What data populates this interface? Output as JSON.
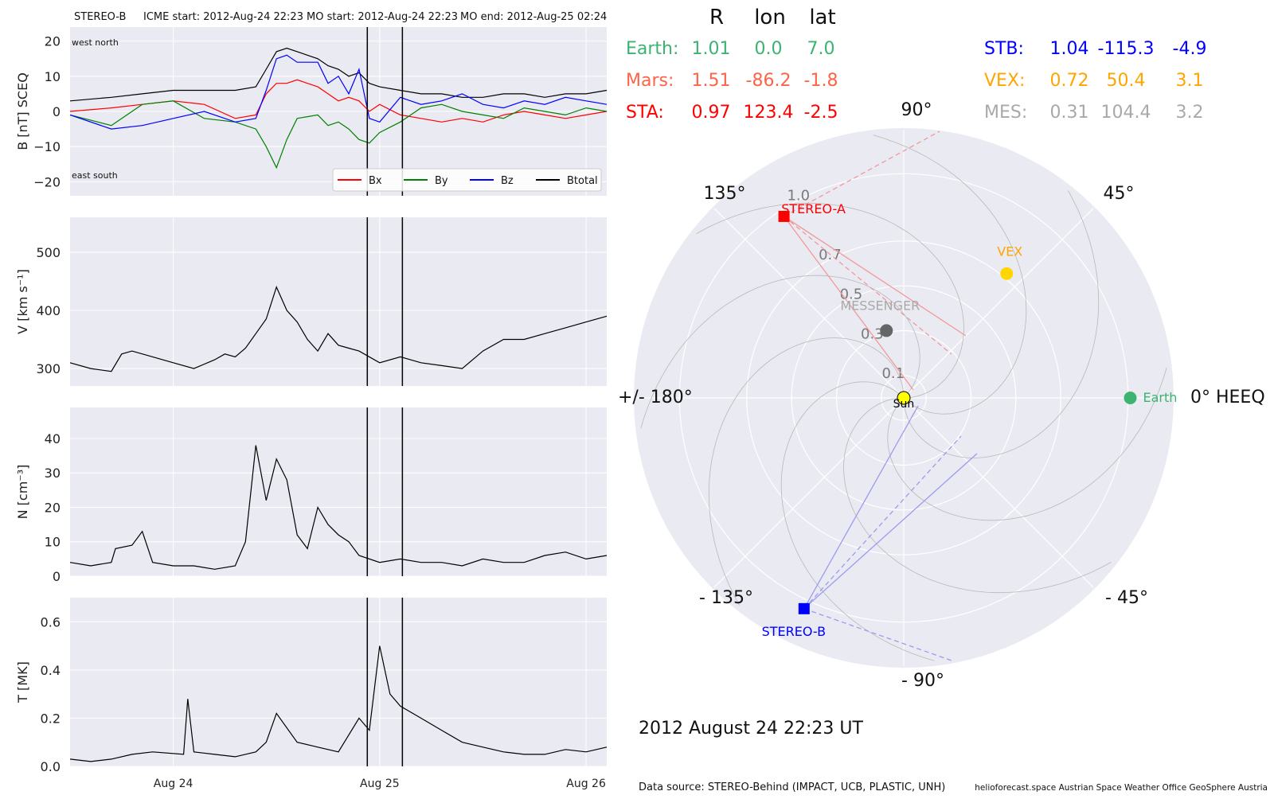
{
  "header": {
    "spacecraft": "STEREO-B",
    "icme_start": "ICME start: 2012-Aug-24 22:23",
    "mo_start": "MO start: 2012-Aug-24 22:23",
    "mo_end": "MO end: 2012-Aug-25 02:24"
  },
  "chart_data": [
    {
      "type": "line",
      "panel": "magnetic field",
      "ylabel": "B [nT] SCEQ",
      "ylim": [
        -24,
        24
      ],
      "yticks": [
        "20",
        "10",
        "0",
        "−10",
        "−20"
      ],
      "ytick_values": [
        20,
        10,
        0,
        -10,
        -20
      ],
      "corner_labels": {
        "top": "west    north",
        "bottom": "east    south"
      },
      "legend": [
        {
          "name": "Bx",
          "color": "#ff0000"
        },
        {
          "name": "By",
          "color": "#008000"
        },
        {
          "name": "Bz",
          "color": "#0000ff"
        },
        {
          "name": "Btotal",
          "color": "#000000"
        }
      ],
      "series": [
        {
          "name": "Btotal",
          "color": "#000000",
          "x": [
            0,
            0.2,
            0.35,
            0.5,
            0.65,
            0.8,
            0.9,
            0.95,
            1.0,
            1.05,
            1.1,
            1.2,
            1.25,
            1.3,
            1.35,
            1.4,
            1.45,
            1.5,
            1.6,
            1.7,
            1.8,
            1.9,
            2.0,
            2.1,
            2.2,
            2.3,
            2.4,
            2.5,
            2.6
          ],
          "y": [
            3,
            4,
            5,
            6,
            6,
            6,
            7,
            12,
            17,
            18,
            17,
            15,
            13,
            12,
            10,
            11,
            8,
            7,
            6,
            5,
            5,
            4,
            4,
            5,
            5,
            4,
            5,
            5,
            6
          ]
        },
        {
          "name": "Bx",
          "color": "#ff0000",
          "x": [
            0,
            0.2,
            0.35,
            0.5,
            0.65,
            0.8,
            0.9,
            0.95,
            1.0,
            1.05,
            1.1,
            1.2,
            1.25,
            1.3,
            1.35,
            1.4,
            1.45,
            1.5,
            1.6,
            1.7,
            1.8,
            1.9,
            2.0,
            2.1,
            2.2,
            2.3,
            2.4,
            2.5,
            2.6
          ],
          "y": [
            0,
            1,
            2,
            3,
            2,
            -2,
            -1,
            5,
            8,
            8,
            9,
            7,
            5,
            3,
            4,
            3,
            0,
            2,
            -1,
            -2,
            -3,
            -2,
            -3,
            -1,
            0,
            -1,
            -2,
            -1,
            0
          ]
        },
        {
          "name": "By",
          "color": "#008000",
          "x": [
            0,
            0.2,
            0.35,
            0.5,
            0.65,
            0.8,
            0.9,
            0.95,
            1.0,
            1.05,
            1.1,
            1.2,
            1.25,
            1.3,
            1.35,
            1.4,
            1.45,
            1.5,
            1.6,
            1.7,
            1.8,
            1.9,
            2.0,
            2.1,
            2.2,
            2.3,
            2.4,
            2.5,
            2.6
          ],
          "y": [
            -1,
            -4,
            2,
            3,
            -2,
            -3,
            -5,
            -10,
            -16,
            -8,
            -2,
            -1,
            -4,
            -3,
            -5,
            -8,
            -9,
            -6,
            -3,
            1,
            2,
            0,
            -1,
            -2,
            1,
            0,
            -1,
            1,
            0
          ]
        },
        {
          "name": "Bz",
          "color": "#0000ff",
          "x": [
            0,
            0.2,
            0.35,
            0.5,
            0.65,
            0.8,
            0.9,
            0.95,
            1.0,
            1.05,
            1.1,
            1.2,
            1.25,
            1.3,
            1.35,
            1.4,
            1.45,
            1.5,
            1.6,
            1.7,
            1.8,
            1.9,
            2.0,
            2.1,
            2.2,
            2.3,
            2.4,
            2.5,
            2.6
          ],
          "y": [
            -1,
            -5,
            -4,
            -2,
            0,
            -3,
            -2,
            6,
            15,
            16,
            14,
            14,
            8,
            10,
            5,
            12,
            -2,
            -3,
            4,
            2,
            3,
            5,
            2,
            1,
            3,
            2,
            4,
            3,
            2
          ]
        }
      ]
    },
    {
      "type": "line",
      "panel": "speed",
      "ylabel": "V [km s⁻¹]",
      "ylim": [
        270,
        560
      ],
      "yticks": [
        "500",
        "400",
        "300"
      ],
      "ytick_values": [
        500,
        400,
        300
      ],
      "series": [
        {
          "name": "",
          "color": "#000000",
          "x": [
            0,
            0.1,
            0.2,
            0.25,
            0.3,
            0.4,
            0.5,
            0.6,
            0.7,
            0.75,
            0.8,
            0.85,
            0.9,
            0.95,
            1.0,
            1.05,
            1.1,
            1.15,
            1.2,
            1.25,
            1.3,
            1.35,
            1.4,
            1.5,
            1.6,
            1.7,
            1.8,
            1.9,
            2.0,
            2.1,
            2.2,
            2.3,
            2.4,
            2.5,
            2.6
          ],
          "y": [
            310,
            300,
            295,
            325,
            330,
            320,
            310,
            300,
            315,
            325,
            320,
            335,
            360,
            385,
            440,
            400,
            380,
            350,
            330,
            360,
            340,
            335,
            330,
            310,
            320,
            310,
            305,
            300,
            330,
            350,
            350,
            360,
            370,
            380,
            390
          ]
        }
      ]
    },
    {
      "type": "line",
      "panel": "density",
      "ylabel": "N [cm⁻³]",
      "ylim": [
        0,
        49
      ],
      "yticks": [
        "40",
        "30",
        "20",
        "10",
        "0"
      ],
      "ytick_values": [
        40,
        30,
        20,
        10,
        0
      ],
      "series": [
        {
          "name": "",
          "color": "#000000",
          "x": [
            0,
            0.1,
            0.2,
            0.22,
            0.3,
            0.35,
            0.4,
            0.5,
            0.6,
            0.7,
            0.8,
            0.85,
            0.9,
            0.95,
            1.0,
            1.05,
            1.1,
            1.15,
            1.2,
            1.25,
            1.3,
            1.35,
            1.4,
            1.5,
            1.6,
            1.7,
            1.8,
            1.9,
            2.0,
            2.1,
            2.2,
            2.3,
            2.4,
            2.5,
            2.6
          ],
          "y": [
            4,
            3,
            4,
            8,
            9,
            13,
            4,
            3,
            3,
            2,
            3,
            10,
            38,
            22,
            34,
            28,
            12,
            8,
            20,
            15,
            12,
            10,
            6,
            4,
            5,
            4,
            4,
            3,
            5,
            4,
            4,
            6,
            7,
            5,
            6
          ]
        }
      ]
    },
    {
      "type": "line",
      "panel": "temperature",
      "ylabel": "T [MK]",
      "ylim": [
        0,
        0.7
      ],
      "yticks": [
        "0.6",
        "0.4",
        "0.2",
        "0.0"
      ],
      "ytick_values": [
        0.6,
        0.4,
        0.2,
        0.0
      ],
      "xticks": [
        "Aug 24",
        "Aug 25",
        "Aug 26"
      ],
      "xtick_values": [
        0.5,
        1.5,
        2.5
      ],
      "series": [
        {
          "name": "",
          "color": "#000000",
          "x": [
            0,
            0.1,
            0.2,
            0.3,
            0.4,
            0.55,
            0.57,
            0.6,
            0.7,
            0.8,
            0.9,
            0.95,
            1.0,
            1.1,
            1.2,
            1.3,
            1.4,
            1.45,
            1.5,
            1.55,
            1.6,
            1.7,
            1.8,
            1.9,
            2.0,
            2.1,
            2.2,
            2.3,
            2.4,
            2.5,
            2.6
          ],
          "y": [
            0.03,
            0.02,
            0.03,
            0.05,
            0.06,
            0.05,
            0.28,
            0.06,
            0.05,
            0.04,
            0.06,
            0.1,
            0.22,
            0.1,
            0.08,
            0.06,
            0.2,
            0.15,
            0.5,
            0.3,
            0.25,
            0.2,
            0.15,
            0.1,
            0.08,
            0.06,
            0.05,
            0.05,
            0.07,
            0.06,
            0.08
          ]
        }
      ]
    },
    {
      "type": "scatter",
      "panel": "polar position plot",
      "angular_ticks": [
        "90°",
        "45°",
        "0° HEEQ",
        "- 45°",
        "- 90°",
        "- 135°",
        "+/- 180°",
        "135°"
      ],
      "radial_ticks": [
        "0.1",
        "0.3",
        "0.5",
        "0.7",
        "1.0"
      ],
      "radial_tick_values": [
        0.1,
        0.3,
        0.5,
        0.7,
        1.0
      ],
      "r_max": 1.2,
      "points": [
        {
          "name": "Sun",
          "r": 0.0,
          "lon": 0.0,
          "color": "#ffff00"
        },
        {
          "name": "Earth",
          "r": 1.01,
          "lon": 0.0,
          "color": "#3cb371"
        },
        {
          "name": "VEX",
          "r": 0.72,
          "lon": 50.4,
          "color": "#ffd700"
        },
        {
          "name": "MESSENGER",
          "r": 0.31,
          "lon": 104.4,
          "color": "#666666"
        },
        {
          "name": "STEREO-A",
          "r": 0.97,
          "lon": 123.4,
          "color": "#ff0000"
        },
        {
          "name": "STEREO-B",
          "r": 1.04,
          "lon": -115.3,
          "color": "#0000ff"
        }
      ]
    }
  ],
  "shading": {
    "event_lines_x": [
      1.44,
      1.61
    ]
  },
  "position_table": {
    "headers": [
      "R",
      "lon",
      "lat"
    ],
    "left": [
      {
        "name": "Earth:",
        "r": "1.01",
        "lon": "0.0",
        "lat": "7.0",
        "color": "#3cb371"
      },
      {
        "name": "Mars:",
        "r": "1.51",
        "lon": "-86.2",
        "lat": "-1.8",
        "color": "#ff6347"
      },
      {
        "name": "STA:",
        "r": "0.97",
        "lon": "123.4",
        "lat": "-2.5",
        "color": "#ff0000"
      }
    ],
    "right": [
      {
        "name": "STB:",
        "r": "1.04",
        "lon": "-115.3",
        "lat": "-4.9",
        "color": "#0000ff"
      },
      {
        "name": "VEX:",
        "r": "0.72",
        "lon": "50.4",
        "lat": "3.1",
        "color": "#ffa500"
      },
      {
        "name": "MES:",
        "r": "0.31",
        "lon": "104.4",
        "lat": "3.2",
        "color": "#a9a9a9"
      }
    ]
  },
  "timestamp": "2012 August 24  22:23 UT",
  "footer": {
    "data_source": "Data source: STEREO-Behind (IMPACT, UCB, PLASTIC, UNH)",
    "credits": "helioforecast.space   Austrian Space Weather Office   GeoSphere Austria"
  }
}
